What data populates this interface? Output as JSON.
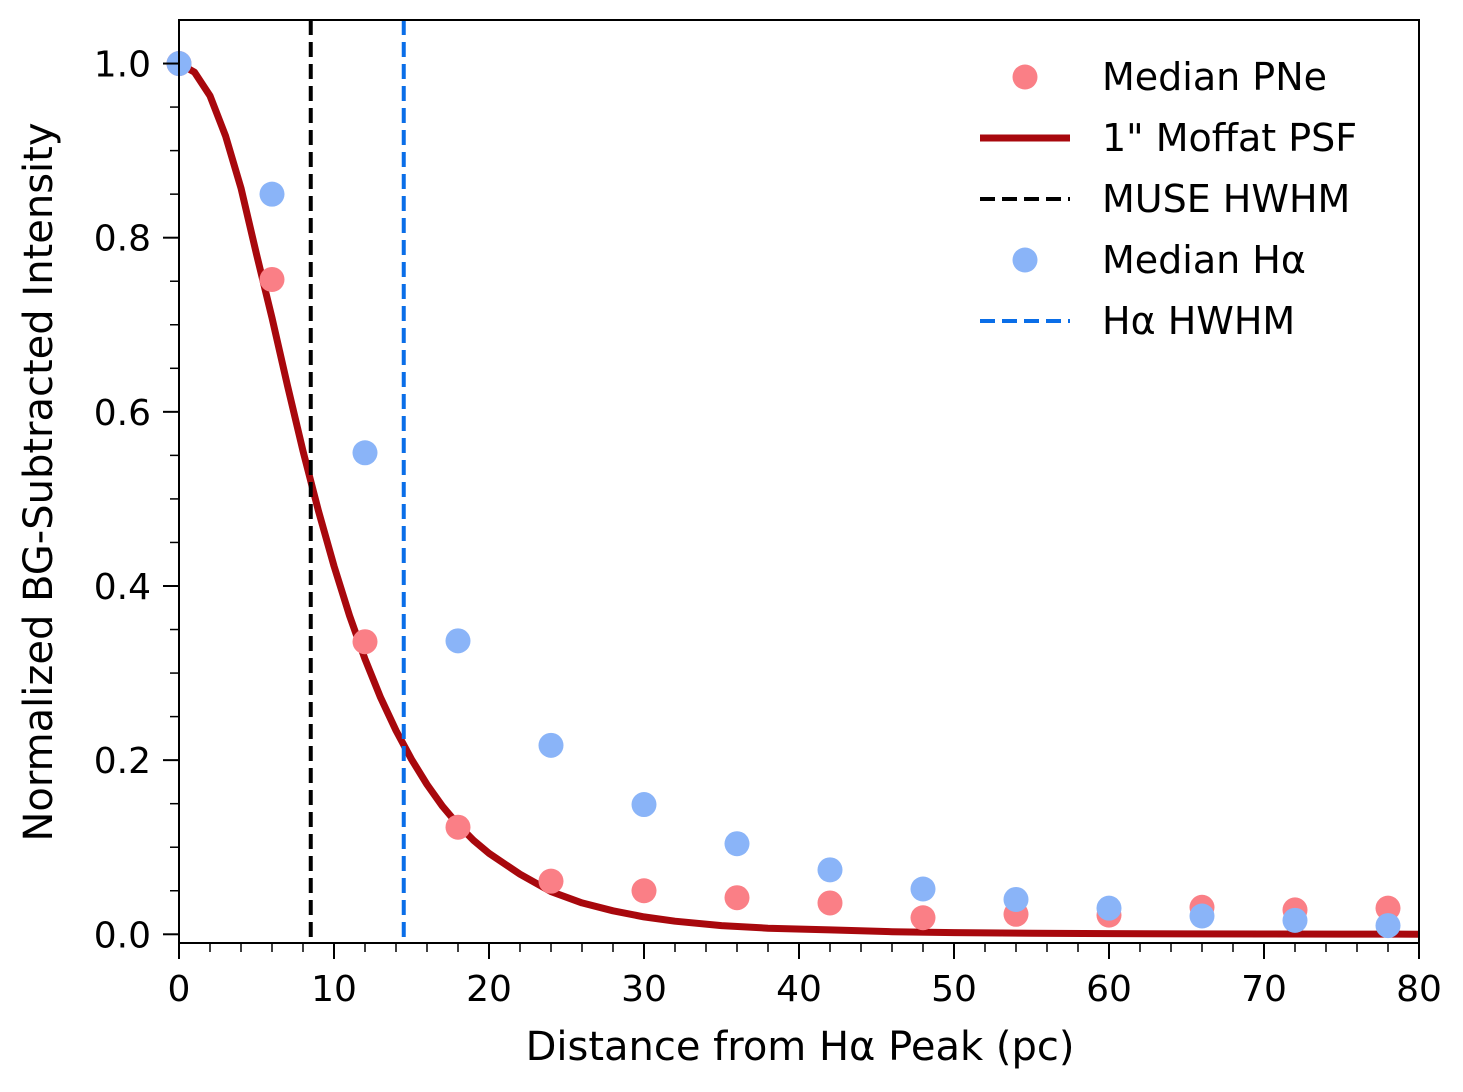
{
  "chart_data": {
    "type": "scatter",
    "title": "",
    "xlabel": "Distance from Hα Peak (pc)",
    "ylabel": "Normalized BG-Subtracted Intensity",
    "xlim": [
      0,
      80
    ],
    "ylim": [
      -0.01,
      1.05
    ],
    "xticks": [
      0,
      10,
      20,
      30,
      40,
      50,
      60,
      70,
      80
    ],
    "yticks": [
      0.0,
      0.2,
      0.4,
      0.6,
      0.8,
      1.0
    ],
    "ytick_labels": [
      "0.0",
      "0.2",
      "0.4",
      "0.6",
      "0.8",
      "1.0"
    ],
    "grid": false,
    "legend_position": "top-right",
    "series": [
      {
        "name": "Median PNe",
        "kind": "scatter",
        "color": "#fa7f86",
        "x": [
          0,
          6,
          12,
          18,
          24,
          30,
          36,
          42,
          48,
          54,
          60,
          66,
          72,
          78
        ],
        "y": [
          1.0,
          0.752,
          0.336,
          0.123,
          0.061,
          0.05,
          0.042,
          0.036,
          0.019,
          0.023,
          0.022,
          0.031,
          0.028,
          0.03
        ]
      },
      {
        "name": "1\" Moffat PSF",
        "kind": "line",
        "color": "#a8080d",
        "x": [
          0,
          1,
          2,
          3,
          4,
          5,
          6,
          7,
          8,
          9,
          10,
          11,
          12,
          13,
          14,
          15,
          16,
          17,
          18,
          19,
          20,
          22,
          24,
          26,
          28,
          30,
          32,
          35,
          38,
          42,
          46,
          50,
          55,
          60,
          65,
          70,
          75,
          80
        ],
        "y": [
          1.0,
          0.99,
          0.963,
          0.917,
          0.857,
          0.781,
          0.708,
          0.63,
          0.555,
          0.486,
          0.423,
          0.366,
          0.316,
          0.272,
          0.234,
          0.201,
          0.172,
          0.147,
          0.126,
          0.108,
          0.093,
          0.069,
          0.049,
          0.036,
          0.027,
          0.02,
          0.015,
          0.01,
          0.007,
          0.005,
          0.003,
          0.002,
          0.0013,
          0.0008,
          0.0005,
          0.0003,
          0.0002,
          0.0001
        ]
      },
      {
        "name": "MUSE HWHM",
        "kind": "vline",
        "color": "#000000",
        "x": 8.5
      },
      {
        "name": "Median Hα",
        "kind": "scatter",
        "color": "#8ab4f8",
        "x": [
          0,
          6,
          12,
          18,
          24,
          30,
          36,
          42,
          48,
          54,
          60,
          66,
          72,
          78
        ],
        "y": [
          1.0,
          0.85,
          0.553,
          0.337,
          0.217,
          0.149,
          0.104,
          0.074,
          0.052,
          0.04,
          0.03,
          0.021,
          0.016,
          0.01
        ]
      },
      {
        "name": "Hα HWHM",
        "kind": "vline",
        "color": "#0a6ee8",
        "x": 14.5
      }
    ]
  }
}
